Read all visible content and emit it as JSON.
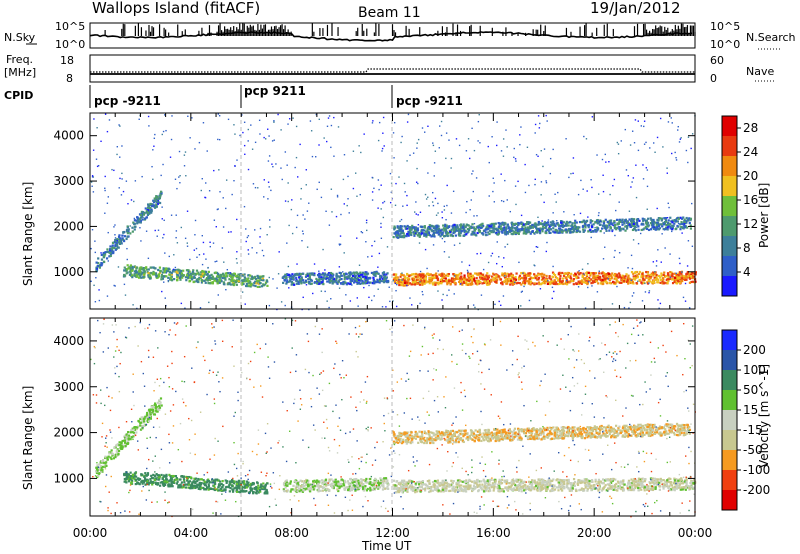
{
  "header": {
    "station": "Wallops Island (fitACF)",
    "beam": "Beam 11",
    "date": "19/Jan/2012"
  },
  "nsky": {
    "label": "N.Sky",
    "ticks": [
      "10^5",
      "10^0"
    ],
    "right_ticks": [
      "10^5",
      "10^0"
    ],
    "right_label": "N.Search"
  },
  "freq": {
    "label_line1": "Freq.",
    "label_line2": "[MHz]",
    "ticks": [
      "18",
      "8"
    ],
    "right_ticks": [
      "60",
      "0"
    ],
    "right_label": "Nave"
  },
  "cpid": {
    "label": "CPID",
    "segments": [
      {
        "name": "pcp -9211",
        "start_h": 0.0
      },
      {
        "name": "pcp 9211",
        "start_h": 6.0
      },
      {
        "name": "pcp -9211",
        "start_h": 12.0
      }
    ]
  },
  "colors": {
    "power": [
      "#1a1aff",
      "#2f5fc8",
      "#3d7f9a",
      "#4e9a6e",
      "#6fbf3a",
      "#f0c020",
      "#f08a10",
      "#e83a10",
      "#e00000"
    ],
    "velocity": [
      "#e00000",
      "#f04010",
      "#f59a20",
      "#c8c890",
      "#c8d0c0",
      "#60c030",
      "#3b8a60",
      "#2a55a8",
      "#1a2aff"
    ]
  },
  "chart_data": {
    "type": "heatmap",
    "x_range_hours": [
      0,
      24
    ],
    "x_ticks": [
      "00:00",
      "04:00",
      "08:00",
      "12:00",
      "16:00",
      "20:00",
      "00:00"
    ],
    "xlabel": "Time UT",
    "ylabel": "Slant Range [km]",
    "y_range_km": [
      180,
      4500
    ],
    "y_ticks": [
      1000,
      2000,
      3000,
      4000
    ],
    "power_colorbar": {
      "label": "Power [dB]",
      "range": [
        0,
        30
      ],
      "ticks": [
        4,
        8,
        12,
        16,
        20,
        24,
        28
      ]
    },
    "velocity_colorbar": {
      "label": "Velocity [m s^-1]",
      "ticks": [
        "200",
        "100",
        "50",
        "15",
        "-15",
        "-50",
        "-100",
        "-200"
      ]
    },
    "features": [
      {
        "name": "early-rising-band",
        "t_start": 0.2,
        "t_end": 2.8,
        "range_start_km": 1150,
        "range_end_km": 2700,
        "power_db": 8,
        "velocity": 20
      },
      {
        "name": "morning-band",
        "t_start": 1.3,
        "t_end": 7.0,
        "range_start_km": 1050,
        "range_end_km": 800,
        "power_db": 12,
        "velocity": 70
      },
      {
        "name": "midday-band",
        "t_start": 7.6,
        "t_end": 11.8,
        "range_start_km": 850,
        "range_end_km": 900,
        "power_db": 7,
        "velocity": 10
      },
      {
        "name": "evening-strong-band",
        "t_start": 12.0,
        "t_end": 24.0,
        "range_start_km": 850,
        "range_end_km": 900,
        "power_db": 22,
        "velocity": -10
      },
      {
        "name": "evening-upper-band",
        "t_start": 12.0,
        "t_end": 23.8,
        "range_start_km": 1900,
        "range_end_km": 2100,
        "power_db": 8,
        "velocity": -40
      }
    ]
  }
}
